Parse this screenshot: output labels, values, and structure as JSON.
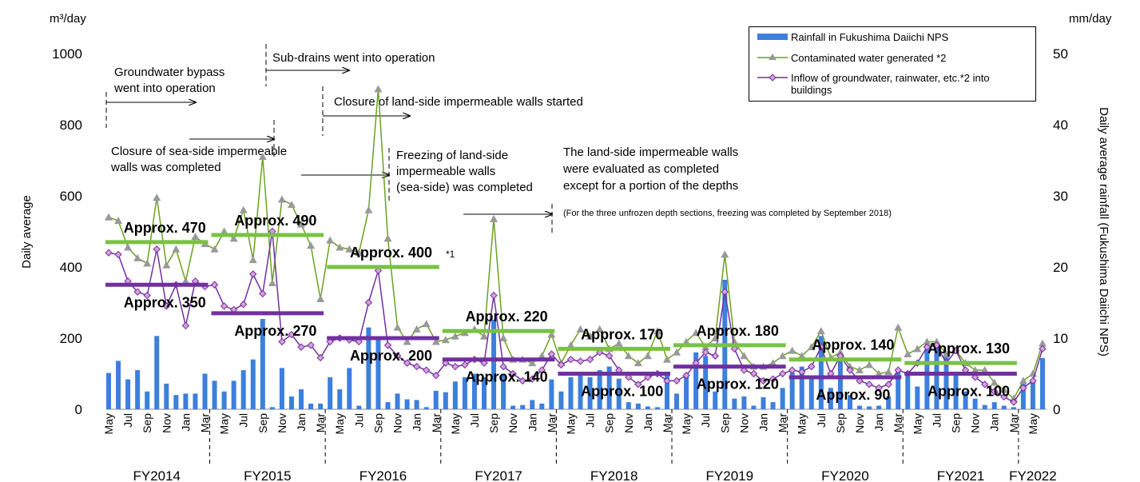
{
  "chart_data": {
    "type": "bar_line",
    "y_unit": "m³/day",
    "y2_unit": "mm/day",
    "ylabel": "Daily average",
    "y2label": "Daily average rainfall (Fukushima Daiichi NPS)",
    "ylim": [
      0,
      1000
    ],
    "yticks": [
      0,
      200,
      400,
      600,
      800,
      1000
    ],
    "y2lim": [
      0,
      50
    ],
    "y2ticks": [
      0,
      10,
      20,
      30,
      40,
      50
    ],
    "categories": [
      "May",
      null,
      "Jul",
      null,
      "Sep",
      null,
      "Nov",
      null,
      "Jan",
      null,
      "Mar",
      null,
      "May",
      null,
      "Jul",
      null,
      "Sep",
      null,
      "Nov",
      null,
      "Jan",
      null,
      "Mar",
      null,
      "May",
      null,
      "Jul",
      null,
      "Sep",
      null,
      "Nov",
      null,
      "Jan",
      null,
      "Mar",
      null,
      "May",
      null,
      "Jul",
      null,
      "Sep",
      null,
      "Nov",
      null,
      "Jan",
      null,
      "Mar",
      null,
      "May",
      null,
      "Jul",
      null,
      "Sep",
      null,
      "Nov",
      null,
      "Jan",
      null,
      "Mar",
      null,
      "May",
      null,
      "Jul",
      null,
      "Sep",
      null,
      "Nov",
      null,
      "Jan",
      null,
      "Mar",
      null,
      "May",
      null,
      "Jul",
      null,
      "Sep",
      null,
      "Nov",
      null,
      "Jan",
      null,
      "Mar",
      null,
      "May",
      null,
      "Jul",
      null,
      "Sep",
      null,
      "Nov",
      null,
      "Jan",
      null,
      "Mar",
      null,
      "May",
      null
    ],
    "fiscal_years": [
      "FY2014",
      "FY2015",
      "FY2016",
      "FY2017",
      "FY2018",
      "FY2019",
      "FY2020",
      "FY2021",
      "FY2022"
    ],
    "series": [
      {
        "name": "Rainfall in Fukushima Daiichi NPS",
        "color": "#3d7fdc",
        "axis": "y2",
        "kind": "bar",
        "values": [
          5.1,
          6.8,
          4.2,
          5.5,
          2.5,
          10.3,
          3.6,
          2.0,
          2.2,
          2.2,
          5.0,
          4,
          2.5,
          4,
          5.5,
          7,
          12.7,
          0.3,
          5.8,
          1.8,
          2.8,
          0.8,
          0.8,
          4.5,
          2.8,
          5.8,
          0.5,
          11.5,
          10,
          1,
          2.2,
          1.4,
          1.3,
          0.3,
          2.6,
          2.4,
          3.9,
          4.5,
          5,
          4.5,
          12.6,
          5,
          0.5,
          0.6,
          1.3,
          0.8,
          4.2,
          2.5,
          4.5,
          5,
          4.5,
          5.5,
          6,
          4.3,
          1,
          0.8,
          0.4,
          0.3,
          5,
          2.2,
          5,
          8,
          7.5,
          2.5,
          18.2,
          1.5,
          1.8,
          0.5,
          1.7,
          1,
          3,
          5.2,
          6,
          4.5,
          10.3,
          3,
          6.8,
          2,
          0.5,
          0.4,
          0.5,
          1.8,
          5.4,
          4.8,
          3.2,
          8.4,
          9.5,
          8,
          5,
          2.5,
          1.5,
          0.6,
          1,
          0.5,
          0.3,
          4,
          4.2,
          7.2
        ]
      },
      {
        "name": "Contaminated water generated  *2",
        "color": "#6aa121",
        "kind": "line",
        "marker": "triangle",
        "values": [
          540,
          530,
          455,
          425,
          410,
          595,
          405,
          450,
          360,
          485,
          465,
          450,
          500,
          480,
          560,
          420,
          710,
          355,
          590,
          575,
          520,
          460,
          310,
          475,
          455,
          450,
          440,
          560,
          900,
          480,
          230,
          190,
          225,
          240,
          190,
          195,
          205,
          215,
          225,
          205,
          535,
          200,
          140,
          140,
          130,
          150,
          210,
          130,
          180,
          225,
          205,
          225,
          170,
          185,
          150,
          130,
          150,
          220,
          140,
          160,
          190,
          215,
          175,
          200,
          435,
          190,
          150,
          120,
          120,
          130,
          150,
          165,
          150,
          175,
          220,
          145,
          160,
          120,
          110,
          125,
          100,
          105,
          230,
          155,
          170,
          190,
          190,
          155,
          165,
          130,
          110,
          110,
          75,
          55,
          30,
          80,
          100,
          185
        ]
      },
      {
        "name": "Inflow of groundwater, rainwater, etc.*2 into buildings",
        "color": "#7030a0",
        "kind": "line",
        "marker": "diamond",
        "values": [
          440,
          435,
          360,
          330,
          320,
          450,
          290,
          350,
          235,
          360,
          345,
          350,
          290,
          280,
          295,
          380,
          325,
          500,
          190,
          210,
          175,
          180,
          145,
          190,
          200,
          195,
          190,
          300,
          390,
          180,
          150,
          130,
          120,
          110,
          95,
          130,
          120,
          125,
          140,
          130,
          320,
          120,
          100,
          80,
          85,
          110,
          155,
          125,
          140,
          135,
          140,
          160,
          150,
          110,
          90,
          70,
          90,
          100,
          80,
          80,
          95,
          130,
          160,
          150,
          330,
          170,
          110,
          100,
          80,
          85,
          100,
          110,
          105,
          120,
          175,
          100,
          150,
          110,
          80,
          70,
          60,
          70,
          110,
          100,
          130,
          175,
          180,
          130,
          165,
          110,
          90,
          70,
          50,
          35,
          20,
          60,
          80,
          170
        ]
      }
    ],
    "averages": [
      {
        "color": "#7ac143",
        "values": [
          470,
          490,
          400,
          220,
          170,
          180,
          140,
          130
        ],
        "value_labels": [
          "Approx. 470",
          "Approx. 490",
          "Approx. 400",
          "Approx. 220",
          "Approx. 170",
          "Approx. 180",
          "Approx. 140",
          "Approx. 130"
        ]
      },
      {
        "color": "#7030a0",
        "values": [
          350,
          270,
          200,
          140,
          100,
          120,
          90,
          100
        ],
        "value_labels": [
          "Approx. 350",
          "Approx. 270",
          "Approx. 200",
          "Approx. 140",
          "Approx. 100",
          "Approx. 120",
          "Approx. 90",
          "Approx. 100"
        ]
      }
    ],
    "notes": [
      "*1"
    ],
    "annotations": [
      [
        "Groundwater bypass",
        "went into operation"
      ],
      [
        "Sub-drains went into operation"
      ],
      [
        "Closure of land-side impermeable walls started"
      ],
      [
        "Closure of sea-side impermeable",
        "walls was completed"
      ],
      [
        "Freezing of land-side",
        "impermeable walls",
        "(sea-side) was completed"
      ],
      [
        "The land-side impermeable walls",
        "were evaluated as completed",
        "except for a portion of the depths"
      ],
      [
        "(For the three unfrozen depth sections, freezing was completed by September 2018)"
      ]
    ]
  }
}
